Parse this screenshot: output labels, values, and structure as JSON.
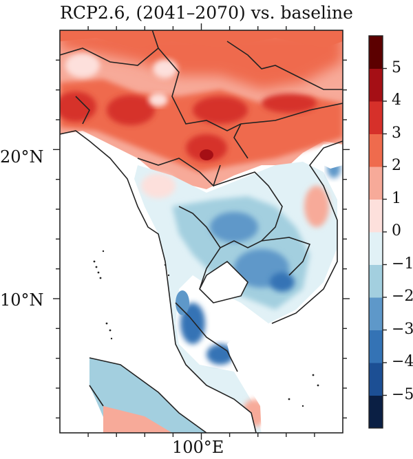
{
  "title": "RCP2.6, (2041–2070) vs. baseline",
  "map": {
    "lat_ticks": [
      {
        "value": 20,
        "label": "20°N"
      },
      {
        "value": 10,
        "label": "10°N"
      }
    ],
    "lon_ticks": [
      {
        "value": 100,
        "label": "100°E"
      }
    ],
    "extent": {
      "lon_min": 90,
      "lon_max": 110,
      "lat_min": 1,
      "lat_max": 28
    }
  },
  "colorbar": {
    "min": -6,
    "max": 6,
    "step": 1,
    "tick_labels": [
      "5",
      "4",
      "3",
      "2",
      "1",
      "0",
      "−1",
      "−2",
      "−3",
      "−4",
      "−5"
    ],
    "colors": [
      "#0a1f44",
      "#1c4f94",
      "#3473b5",
      "#5e98c9",
      "#a3cfdf",
      "#e1f1f6",
      "#fde0dc",
      "#f7aa99",
      "#ef6b4d",
      "#d6302a",
      "#a50f15",
      "#5c0000"
    ]
  }
}
